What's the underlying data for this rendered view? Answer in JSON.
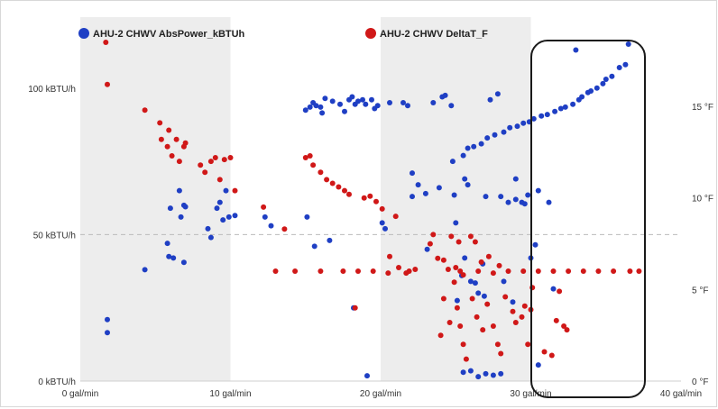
{
  "colors": {
    "abs_power": "#1f3fc4",
    "delta_t": "#d01818",
    "band": "#ededed",
    "midline": "#bbbbbb",
    "annotation": "#1a1a1a"
  },
  "chart_data": {
    "type": "scatter",
    "title": "",
    "xlabel": "",
    "ylabel": "",
    "legend_position": "top-left",
    "grid": false,
    "shaded_bands_x": [
      [
        0,
        10
      ],
      [
        20,
        30
      ]
    ],
    "dashed_reference_y_left": 50,
    "annotation": "rounded rectangle outline around x 30.5–36.5 gal/min",
    "xlim": [
      0,
      40
    ],
    "ylim_left": [
      0,
      115
    ],
    "ylim_right": [
      0,
      18.4
    ],
    "x_ticks": [
      {
        "value": 0,
        "label": "0 gal/min"
      },
      {
        "value": 10,
        "label": "10 gal/min"
      },
      {
        "value": 20,
        "label": "20 gal/min"
      },
      {
        "value": 30,
        "label": "30 gal/min"
      },
      {
        "value": 40,
        "label": "40 gal/min"
      }
    ],
    "y_left_ticks": [
      {
        "value": 0,
        "label": "0 kBTU/h"
      },
      {
        "value": 50,
        "label": "50 kBTU/h"
      },
      {
        "value": 100,
        "label": "100 kBTU/h"
      }
    ],
    "y_right_ticks": [
      {
        "value": 0,
        "label": "0 °F"
      },
      {
        "value": 5,
        "label": "5 °F"
      },
      {
        "value": 10,
        "label": "10 °F"
      },
      {
        "value": 15,
        "label": "15 °F"
      }
    ],
    "series": [
      {
        "name": "AHU-2 CHWV AbsPower_kBTUh",
        "axis": "left",
        "color": "#1f3fc4",
        "points": [
          [
            1.8,
            21
          ],
          [
            1.8,
            16.5
          ],
          [
            4.3,
            38
          ],
          [
            5.8,
            47
          ],
          [
            5.9,
            42.5
          ],
          [
            6.0,
            59
          ],
          [
            6.2,
            42
          ],
          [
            6.6,
            65
          ],
          [
            6.7,
            56
          ],
          [
            6.9,
            40.5
          ],
          [
            6.9,
            60
          ],
          [
            7.0,
            59.5
          ],
          [
            8.5,
            52
          ],
          [
            8.7,
            49
          ],
          [
            9.1,
            59
          ],
          [
            9.3,
            61
          ],
          [
            9.5,
            55
          ],
          [
            9.7,
            65
          ],
          [
            9.9,
            56
          ],
          [
            10.3,
            56.5
          ],
          [
            12.3,
            56
          ],
          [
            12.7,
            53
          ],
          [
            15.0,
            92.5
          ],
          [
            15.1,
            56
          ],
          [
            15.3,
            93.5
          ],
          [
            15.5,
            95
          ],
          [
            15.6,
            46
          ],
          [
            15.7,
            94
          ],
          [
            16.0,
            93.5
          ],
          [
            16.1,
            91.5
          ],
          [
            16.3,
            96.5
          ],
          [
            16.6,
            48
          ],
          [
            16.8,
            95.5
          ],
          [
            17.3,
            94.5
          ],
          [
            17.6,
            92
          ],
          [
            17.9,
            96
          ],
          [
            18.1,
            97
          ],
          [
            18.2,
            25
          ],
          [
            18.3,
            94.5
          ],
          [
            18.5,
            95.5
          ],
          [
            18.8,
            96
          ],
          [
            19.0,
            94.5
          ],
          [
            19.1,
            1.8
          ],
          [
            19.4,
            96
          ],
          [
            19.6,
            93
          ],
          [
            19.8,
            94
          ],
          [
            20.1,
            54
          ],
          [
            20.3,
            52
          ],
          [
            20.6,
            95
          ],
          [
            21.5,
            95
          ],
          [
            21.8,
            94
          ],
          [
            22.1,
            71
          ],
          [
            22.1,
            63
          ],
          [
            22.5,
            67
          ],
          [
            23.0,
            64
          ],
          [
            23.1,
            45
          ],
          [
            23.5,
            95
          ],
          [
            23.9,
            66
          ],
          [
            24.1,
            97
          ],
          [
            24.3,
            97.5
          ],
          [
            24.7,
            94
          ],
          [
            24.8,
            75
          ],
          [
            24.9,
            63.5
          ],
          [
            25.0,
            54
          ],
          [
            25.1,
            27.5
          ],
          [
            25.4,
            36
          ],
          [
            25.6,
            42
          ],
          [
            25.6,
            69
          ],
          [
            25.8,
            67
          ],
          [
            26.0,
            34
          ],
          [
            26.3,
            33.5
          ],
          [
            26.5,
            30
          ],
          [
            26.8,
            40
          ],
          [
            26.9,
            29
          ],
          [
            27.0,
            63
          ],
          [
            27.3,
            96
          ],
          [
            27.8,
            98
          ],
          [
            28.0,
            63
          ],
          [
            28.2,
            34
          ],
          [
            28.5,
            61
          ],
          [
            28.8,
            27
          ],
          [
            29.0,
            69
          ],
          [
            29.0,
            62
          ],
          [
            29.4,
            61
          ],
          [
            29.6,
            60.5
          ],
          [
            29.8,
            63.5
          ],
          [
            30.0,
            42
          ],
          [
            30.3,
            46.5
          ],
          [
            30.5,
            65
          ],
          [
            31.2,
            61
          ],
          [
            31.5,
            31.5
          ],
          [
            33.0,
            113
          ],
          [
            36.5,
            115
          ],
          [
            30.5,
            5.5
          ],
          [
            25.5,
            3
          ],
          [
            26.0,
            3.5
          ],
          [
            26.5,
            1.5
          ],
          [
            27.0,
            2.5
          ],
          [
            27.5,
            2
          ],
          [
            28.0,
            2.5
          ],
          [
            26.2,
            80
          ],
          [
            27.1,
            83
          ],
          [
            28.6,
            86.5
          ],
          [
            29.9,
            88.5
          ],
          [
            31.1,
            91
          ],
          [
            32.3,
            93.5
          ],
          [
            33.4,
            97
          ],
          [
            34.4,
            100
          ],
          [
            35.4,
            104
          ],
          [
            35.9,
            107
          ],
          [
            36.3,
            108
          ],
          [
            25.5,
            77
          ],
          [
            26.7,
            81
          ],
          [
            28.2,
            85
          ],
          [
            29.5,
            88
          ],
          [
            30.7,
            90.5
          ],
          [
            32.0,
            93
          ],
          [
            33.2,
            96
          ],
          [
            34.0,
            99
          ],
          [
            35.0,
            103
          ],
          [
            29.1,
            87
          ],
          [
            30.2,
            89.5
          ],
          [
            31.6,
            92
          ],
          [
            32.8,
            94.5
          ],
          [
            25.8,
            79.5
          ],
          [
            27.6,
            84
          ],
          [
            33.8,
            98.5
          ],
          [
            34.8,
            101.5
          ]
        ]
      },
      {
        "name": "AHU-2 CHWV DeltaT_F",
        "axis": "right",
        "color": "#d01818",
        "points": [
          [
            1.7,
            18.5
          ],
          [
            1.8,
            16.2
          ],
          [
            4.3,
            14.8
          ],
          [
            5.3,
            14.1
          ],
          [
            5.4,
            13.2
          ],
          [
            5.8,
            12.8
          ],
          [
            5.9,
            13.7
          ],
          [
            6.1,
            12.3
          ],
          [
            6.4,
            13.2
          ],
          [
            6.6,
            12.0
          ],
          [
            6.9,
            12.8
          ],
          [
            7.0,
            13.0
          ],
          [
            8.0,
            11.8
          ],
          [
            8.3,
            11.4
          ],
          [
            8.7,
            12.0
          ],
          [
            9.0,
            12.2
          ],
          [
            9.3,
            11.0
          ],
          [
            9.6,
            12.1
          ],
          [
            10.0,
            12.2
          ],
          [
            10.3,
            10.4
          ],
          [
            12.2,
            9.5
          ],
          [
            13.6,
            8.3
          ],
          [
            14.3,
            6.0
          ],
          [
            15.0,
            12.2
          ],
          [
            15.3,
            12.3
          ],
          [
            15.5,
            11.8
          ],
          [
            16.0,
            11.4
          ],
          [
            16.4,
            11.0
          ],
          [
            16.8,
            10.8
          ],
          [
            17.2,
            10.6
          ],
          [
            17.6,
            10.4
          ],
          [
            17.9,
            10.2
          ],
          [
            18.3,
            4.0
          ],
          [
            18.9,
            10.0
          ],
          [
            19.3,
            10.1
          ],
          [
            19.7,
            9.8
          ],
          [
            20.1,
            9.4
          ],
          [
            20.6,
            6.8
          ],
          [
            21.0,
            9.0
          ],
          [
            21.2,
            6.2
          ],
          [
            21.7,
            5.9
          ],
          [
            22.3,
            6.1
          ],
          [
            23.3,
            7.5
          ],
          [
            23.5,
            8.0
          ],
          [
            23.8,
            6.7
          ],
          [
            24.2,
            6.6
          ],
          [
            24.5,
            6.1
          ],
          [
            24.9,
            5.4
          ],
          [
            25.1,
            4.0
          ],
          [
            25.3,
            3.0
          ],
          [
            25.5,
            2.0
          ],
          [
            25.7,
            1.2
          ],
          [
            26.1,
            4.5
          ],
          [
            26.4,
            3.5
          ],
          [
            26.8,
            2.8
          ],
          [
            27.1,
            4.2
          ],
          [
            27.5,
            3.0
          ],
          [
            27.8,
            2.0
          ],
          [
            28.3,
            4.6
          ],
          [
            28.8,
            3.8
          ],
          [
            29.0,
            3.2
          ],
          [
            29.6,
            4.1
          ],
          [
            30.1,
            5.1
          ],
          [
            31.7,
            3.3
          ],
          [
            32.2,
            3.0
          ],
          [
            32.4,
            2.8
          ],
          [
            31.9,
            4.9
          ],
          [
            25.0,
            6.2
          ],
          [
            25.3,
            6.0
          ],
          [
            25.5,
            5.8
          ],
          [
            26.5,
            6.0
          ],
          [
            27.5,
            5.9
          ],
          [
            28.5,
            6.0
          ],
          [
            29.5,
            6.0
          ],
          [
            30.5,
            6.0
          ],
          [
            31.5,
            6.0
          ],
          [
            32.5,
            6.0
          ],
          [
            33.5,
            6.0
          ],
          [
            34.5,
            6.0
          ],
          [
            35.5,
            6.0
          ],
          [
            36.6,
            6.0
          ],
          [
            37.2,
            6.0
          ],
          [
            24.7,
            7.9
          ],
          [
            25.2,
            7.6
          ],
          [
            26.0,
            7.9
          ],
          [
            26.3,
            7.6
          ],
          [
            27.2,
            6.8
          ],
          [
            17.5,
            6.0
          ],
          [
            18.5,
            6.0
          ],
          [
            19.5,
            6.0
          ],
          [
            20.5,
            5.9
          ],
          [
            21.9,
            6.0
          ],
          [
            16.0,
            6.0
          ],
          [
            13.0,
            6.0
          ],
          [
            24.2,
            4.5
          ],
          [
            24.6,
            3.2
          ],
          [
            24.0,
            2.5
          ],
          [
            29.8,
            2.0
          ],
          [
            28.0,
            1.5
          ],
          [
            30.9,
            1.6
          ],
          [
            31.4,
            1.4
          ],
          [
            29.4,
            3.5
          ],
          [
            30.0,
            3.9
          ],
          [
            26.7,
            6.5
          ],
          [
            27.9,
            6.3
          ]
        ]
      }
    ]
  }
}
